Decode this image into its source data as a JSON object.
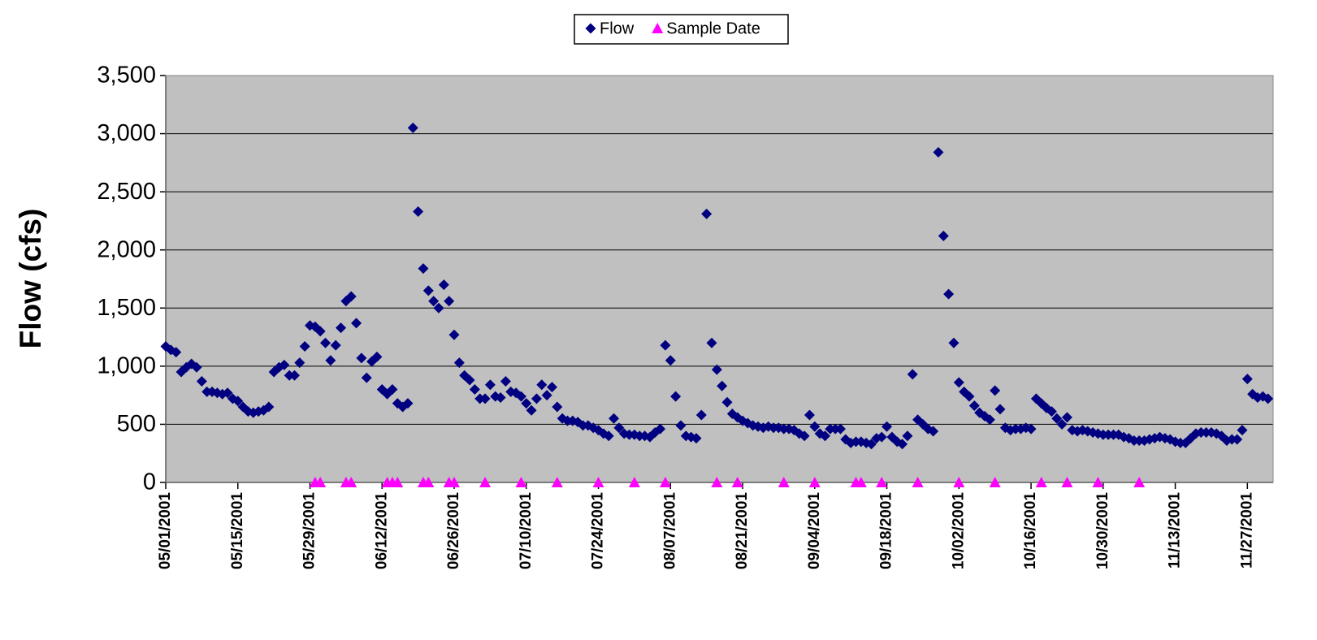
{
  "chart_data": {
    "type": "scatter",
    "y_label": "Flow (cfs)",
    "ylim": [
      0,
      3500
    ],
    "yticks": [
      0,
      500,
      {
        "value": 1000,
        "label": "1,000"
      },
      {
        "value": 1500,
        "label": "1,500"
      },
      {
        "value": 2000,
        "label": "2,000"
      },
      {
        "value": 2500,
        "label": "2,500"
      },
      {
        "value": 3000,
        "label": "3,000"
      },
      {
        "value": 3500,
        "label": "3,500"
      }
    ],
    "xlim": [
      "05/01/2001",
      "12/02/2001"
    ],
    "xticks": [
      "05/01/2001",
      "05/15/2001",
      "05/29/2001",
      "06/12/2001",
      "06/26/2001",
      "07/10/2001",
      "07/24/2001",
      "08/07/2001",
      "08/21/2001",
      "09/04/2001",
      "09/18/2001",
      "10/02/2001",
      "10/16/2001",
      "10/30/2001",
      "11/13/2001",
      "11/27/2001"
    ],
    "grid": true,
    "legend": "top",
    "plot_background": "#C0C0C0",
    "series": [
      {
        "name": "Flow",
        "color": "#000080",
        "marker": "diamond",
        "x": [
          "05/01/2001",
          "05/02/2001",
          "05/03/2001",
          "05/04/2001",
          "05/05/2001",
          "05/06/2001",
          "05/07/2001",
          "05/08/2001",
          "05/09/2001",
          "05/10/2001",
          "05/11/2001",
          "05/12/2001",
          "05/13/2001",
          "05/14/2001",
          "05/15/2001",
          "05/16/2001",
          "05/17/2001",
          "05/18/2001",
          "05/19/2001",
          "05/20/2001",
          "05/21/2001",
          "05/22/2001",
          "05/23/2001",
          "05/24/2001",
          "05/25/2001",
          "05/26/2001",
          "05/27/2001",
          "05/28/2001",
          "05/29/2001",
          "05/30/2001",
          "05/31/2001",
          "06/01/2001",
          "06/02/2001",
          "06/03/2001",
          "06/04/2001",
          "06/05/2001",
          "06/06/2001",
          "06/07/2001",
          "06/08/2001",
          "06/09/2001",
          "06/10/2001",
          "06/11/2001",
          "06/12/2001",
          "06/13/2001",
          "06/14/2001",
          "06/15/2001",
          "06/16/2001",
          "06/17/2001",
          "06/18/2001",
          "06/19/2001",
          "06/20/2001",
          "06/21/2001",
          "06/22/2001",
          "06/23/2001",
          "06/24/2001",
          "06/25/2001",
          "06/26/2001",
          "06/27/2001",
          "06/28/2001",
          "06/29/2001",
          "06/30/2001",
          "07/01/2001",
          "07/02/2001",
          "07/03/2001",
          "07/04/2001",
          "07/05/2001",
          "07/06/2001",
          "07/07/2001",
          "07/08/2001",
          "07/09/2001",
          "07/10/2001",
          "07/11/2001",
          "07/12/2001",
          "07/13/2001",
          "07/14/2001",
          "07/15/2001",
          "07/16/2001",
          "07/17/2001",
          "07/18/2001",
          "07/19/2001",
          "07/20/2001",
          "07/21/2001",
          "07/22/2001",
          "07/23/2001",
          "07/24/2001",
          "07/25/2001",
          "07/26/2001",
          "07/27/2001",
          "07/28/2001",
          "07/29/2001",
          "07/30/2001",
          "07/31/2001",
          "08/01/2001",
          "08/02/2001",
          "08/03/2001",
          "08/04/2001",
          "08/05/2001",
          "08/06/2001",
          "08/07/2001",
          "08/08/2001",
          "08/09/2001",
          "08/10/2001",
          "08/11/2001",
          "08/12/2001",
          "08/13/2001",
          "08/14/2001",
          "08/15/2001",
          "08/16/2001",
          "08/17/2001",
          "08/18/2001",
          "08/19/2001",
          "08/20/2001",
          "08/21/2001",
          "08/22/2001",
          "08/23/2001",
          "08/24/2001",
          "08/25/2001",
          "08/26/2001",
          "08/27/2001",
          "08/28/2001",
          "08/29/2001",
          "08/30/2001",
          "08/31/2001",
          "09/01/2001",
          "09/02/2001",
          "09/03/2001",
          "09/04/2001",
          "09/05/2001",
          "09/06/2001",
          "09/07/2001",
          "09/08/2001",
          "09/09/2001",
          "09/10/2001",
          "09/11/2001",
          "09/12/2001",
          "09/13/2001",
          "09/14/2001",
          "09/15/2001",
          "09/16/2001",
          "09/17/2001",
          "09/18/2001",
          "09/19/2001",
          "09/20/2001",
          "09/21/2001",
          "09/22/2001",
          "09/23/2001",
          "09/24/2001",
          "09/25/2001",
          "09/26/2001",
          "09/27/2001",
          "09/28/2001",
          "09/29/2001",
          "09/30/2001",
          "10/01/2001",
          "10/02/2001",
          "10/03/2001",
          "10/04/2001",
          "10/05/2001",
          "10/06/2001",
          "10/07/2001",
          "10/08/2001",
          "10/09/2001",
          "10/10/2001",
          "10/11/2001",
          "10/12/2001",
          "10/13/2001",
          "10/14/2001",
          "10/15/2001",
          "10/16/2001",
          "10/17/2001",
          "10/18/2001",
          "10/19/2001",
          "10/20/2001",
          "10/21/2001",
          "10/22/2001",
          "10/23/2001",
          "10/24/2001",
          "10/25/2001",
          "10/26/2001",
          "10/27/2001",
          "10/28/2001",
          "10/29/2001",
          "10/30/2001",
          "10/31/2001",
          "11/01/2001",
          "11/02/2001",
          "11/03/2001",
          "11/04/2001",
          "11/05/2001",
          "11/06/2001",
          "11/07/2001",
          "11/08/2001",
          "11/09/2001",
          "11/10/2001",
          "11/11/2001",
          "11/12/2001",
          "11/13/2001",
          "11/14/2001",
          "11/15/2001",
          "11/16/2001",
          "11/17/2001",
          "11/18/2001",
          "11/19/2001",
          "11/20/2001",
          "11/21/2001",
          "11/22/2001",
          "11/23/2001",
          "11/24/2001",
          "11/25/2001",
          "11/26/2001",
          "11/27/2001",
          "11/28/2001",
          "11/29/2001",
          "11/30/2001",
          "12/01/2001"
        ],
        "values": [
          1170,
          1140,
          1120,
          950,
          990,
          1020,
          990,
          870,
          780,
          780,
          770,
          760,
          770,
          720,
          700,
          650,
          610,
          600,
          610,
          620,
          650,
          950,
          990,
          1010,
          920,
          920,
          1030,
          1170,
          1350,
          1340,
          1300,
          1200,
          1050,
          1180,
          1330,
          1560,
          1600,
          1370,
          1070,
          900,
          1040,
          1080,
          800,
          760,
          800,
          680,
          650,
          680,
          3050,
          2330,
          1840,
          1650,
          1560,
          1500,
          1700,
          1560,
          1270,
          1030,
          920,
          880,
          800,
          720,
          720,
          840,
          740,
          730,
          870,
          780,
          770,
          740,
          680,
          620,
          720,
          840,
          750,
          820,
          650,
          550,
          530,
          530,
          520,
          490,
          490,
          470,
          450,
          420,
          400,
          550,
          470,
          420,
          410,
          410,
          400,
          400,
          390,
          430,
          460,
          1180,
          1050,
          740,
          490,
          400,
          390,
          380,
          580,
          2310,
          1200,
          970,
          830,
          690,
          590,
          560,
          530,
          510,
          490,
          480,
          470,
          480,
          470,
          470,
          460,
          460,
          450,
          420,
          400,
          580,
          480,
          420,
          400,
          460,
          460,
          460,
          370,
          340,
          350,
          350,
          340,
          330,
          380,
          390,
          480,
          390,
          350,
          330,
          400,
          930,
          540,
          500,
          460,
          440,
          2840,
          2120,
          1620,
          1200,
          860,
          780,
          740,
          660,
          600,
          570,
          540,
          790,
          630,
          470,
          450,
          460,
          460,
          470,
          460,
          720,
          680,
          640,
          610,
          550,
          500,
          560,
          450,
          440,
          450,
          440,
          430,
          420,
          410,
          410,
          410,
          410,
          390,
          380,
          360,
          360,
          360,
          370,
          380,
          390,
          380,
          370,
          350,
          340,
          340,
          380,
          420,
          430,
          430,
          430,
          420,
          400,
          360,
          370,
          370,
          450,
          890,
          760,
          730,
          740,
          720
        ]
      },
      {
        "name": "Sample Date",
        "color": "#FF00FF",
        "marker": "triangle",
        "x": [
          "05/30/2001",
          "05/31/2001",
          "06/05/2001",
          "06/06/2001",
          "06/13/2001",
          "06/14/2001",
          "06/15/2001",
          "06/20/2001",
          "06/21/2001",
          "06/25/2001",
          "06/26/2001",
          "07/02/2001",
          "07/09/2001",
          "07/16/2001",
          "07/24/2001",
          "07/31/2001",
          "08/06/2001",
          "08/16/2001",
          "08/20/2001",
          "08/29/2001",
          "09/04/2001",
          "09/12/2001",
          "09/13/2001",
          "09/17/2001",
          "09/24/2001",
          "10/02/2001",
          "10/09/2001",
          "10/18/2001",
          "10/23/2001",
          "10/29/2001",
          "11/06/2001"
        ],
        "values": [
          0,
          0,
          0,
          0,
          0,
          0,
          0,
          0,
          0,
          0,
          0,
          0,
          0,
          0,
          0,
          0,
          0,
          0,
          0,
          0,
          0,
          0,
          0,
          0,
          0,
          0,
          0,
          0,
          0,
          0,
          0
        ]
      }
    ]
  }
}
